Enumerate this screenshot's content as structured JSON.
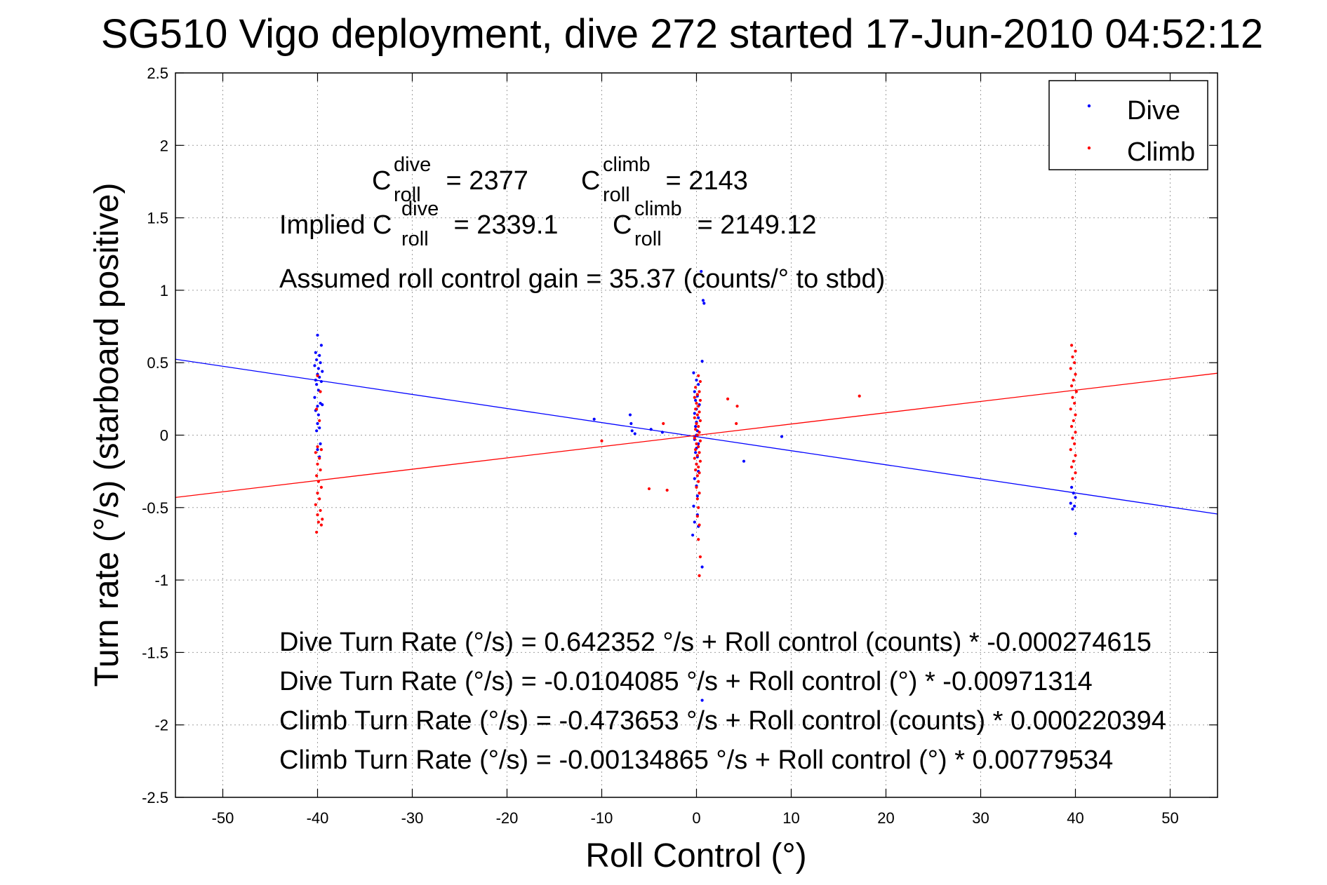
{
  "chart_data": {
    "type": "scatter",
    "title": "SG510 Vigo deployment, dive 272 started 17-Jun-2010 04:52:12",
    "xlabel": "Roll Control (°)",
    "ylabel": "Turn rate (°/s) (starboard positive)",
    "xlim": [
      -55,
      55
    ],
    "ylim": [
      -2.5,
      2.5
    ],
    "xticks": [
      -50,
      -40,
      -30,
      -20,
      -10,
      0,
      10,
      20,
      30,
      40,
      50
    ],
    "yticks": [
      2.5,
      2,
      1.5,
      1,
      0.5,
      0,
      -0.5,
      -1,
      -1.5,
      -2,
      -2.5
    ],
    "xtick_labels": [
      "-50",
      "-40",
      "-30",
      "-20",
      "-10",
      "0",
      "10",
      "20",
      "30",
      "40",
      "50"
    ],
    "ytick_labels": [
      "2.5",
      "2",
      "1.5",
      "1",
      "0.5",
      "0",
      "-0.5",
      "-1",
      "-1.5",
      "-2",
      "-2.5"
    ],
    "grid": true,
    "legend_position": "top-right",
    "series": [
      {
        "name": "Dive",
        "color": "#0000ff",
        "marker": "dot",
        "points": [
          [
            -40,
            0.69
          ],
          [
            -39.6,
            0.62
          ],
          [
            -40.2,
            0.57
          ],
          [
            -39.8,
            0.55
          ],
          [
            -40.1,
            0.52
          ],
          [
            -39.7,
            0.5
          ],
          [
            -40.3,
            0.48
          ],
          [
            -39.9,
            0.46
          ],
          [
            -39.5,
            0.44
          ],
          [
            -40,
            0.42
          ],
          [
            -39.8,
            0.4
          ],
          [
            -40.2,
            0.38
          ],
          [
            -39.6,
            0.37
          ],
          [
            -40.1,
            0.35
          ],
          [
            -39.9,
            0.31
          ],
          [
            -40.3,
            0.26
          ],
          [
            -39.7,
            0.22
          ],
          [
            -40,
            0.2
          ],
          [
            -39.5,
            0.21
          ],
          [
            -40.2,
            0.17
          ],
          [
            -39.9,
            0.14
          ],
          [
            -40,
            0.08
          ],
          [
            -39.8,
            0.05
          ],
          [
            -40.1,
            0.03
          ],
          [
            -39.7,
            -0.06
          ],
          [
            -40,
            -0.1
          ],
          [
            -39.8,
            -0.15
          ],
          [
            -10.8,
            0.11
          ],
          [
            -7,
            0.14
          ],
          [
            -6.9,
            0.08
          ],
          [
            -6.8,
            0.03
          ],
          [
            -6.5,
            0.01
          ],
          [
            -4.8,
            0.04
          ],
          [
            -3.6,
            0.02
          ],
          [
            -0.3,
            0.43
          ],
          [
            0,
            0.38
          ],
          [
            0.2,
            0.35
          ],
          [
            -0.2,
            0.3
          ],
          [
            0.1,
            0.27
          ],
          [
            -0.1,
            0.24
          ],
          [
            0.3,
            0.21
          ],
          [
            0,
            0.18
          ],
          [
            -0.2,
            0.15
          ],
          [
            0.2,
            0.12
          ],
          [
            0,
            0.09
          ],
          [
            -0.1,
            0.06
          ],
          [
            0.1,
            0.03
          ],
          [
            0,
            0.0
          ],
          [
            -0.2,
            -0.03
          ],
          [
            0.2,
            -0.06
          ],
          [
            0,
            -0.09
          ],
          [
            -0.1,
            -0.12
          ],
          [
            0.1,
            -0.15
          ],
          [
            0,
            -0.2
          ],
          [
            0.2,
            -0.25
          ],
          [
            -0.2,
            -0.3
          ],
          [
            0,
            -0.35
          ],
          [
            0.1,
            -0.42
          ],
          [
            -0.3,
            -0.49
          ],
          [
            0.1,
            -0.55
          ],
          [
            -0.2,
            -0.6
          ],
          [
            0.2,
            -0.63
          ],
          [
            -0.4,
            -0.69
          ],
          [
            0.5,
            1.13
          ],
          [
            0.7,
            0.93
          ],
          [
            0.8,
            0.91
          ],
          [
            0.6,
            0.51
          ],
          [
            0.6,
            -0.91
          ],
          [
            0.6,
            -1.83
          ],
          [
            5,
            -0.18
          ],
          [
            9,
            -0.01
          ],
          [
            39.6,
            -0.36
          ],
          [
            39.8,
            -0.4
          ],
          [
            40,
            -0.43
          ],
          [
            39.5,
            -0.47
          ],
          [
            39.9,
            -0.49
          ],
          [
            39.7,
            -0.51
          ],
          [
            40,
            -0.68
          ]
        ]
      },
      {
        "name": "Climb",
        "color": "#ff0000",
        "marker": "dot",
        "points": [
          [
            -40,
            0.41
          ],
          [
            -39.7,
            0.3
          ],
          [
            -40.1,
            0.18
          ],
          [
            -39.8,
            0.1
          ],
          [
            -40,
            -0.08
          ],
          [
            -39.6,
            -0.1
          ],
          [
            -40.2,
            -0.12
          ],
          [
            -39.8,
            -0.16
          ],
          [
            -40,
            -0.2
          ],
          [
            -39.7,
            -0.24
          ],
          [
            -40.1,
            -0.28
          ],
          [
            -39.9,
            -0.32
          ],
          [
            -39.6,
            -0.36
          ],
          [
            -40,
            -0.4
          ],
          [
            -39.8,
            -0.44
          ],
          [
            -40.2,
            -0.48
          ],
          [
            -39.7,
            -0.52
          ],
          [
            -40,
            -0.55
          ],
          [
            -39.5,
            -0.58
          ],
          [
            -39.9,
            -0.6
          ],
          [
            -39.6,
            -0.62
          ],
          [
            -40.1,
            -0.67
          ],
          [
            -10,
            -0.04
          ],
          [
            -5,
            -0.37
          ],
          [
            -3.5,
            0.08
          ],
          [
            -3.1,
            -0.38
          ],
          [
            0.2,
            0.41
          ],
          [
            0.4,
            0.37
          ],
          [
            -0.1,
            0.33
          ],
          [
            0.3,
            0.3
          ],
          [
            0.1,
            0.28
          ],
          [
            -0.2,
            0.26
          ],
          [
            0.4,
            0.24
          ],
          [
            0,
            0.22
          ],
          [
            0.2,
            0.2
          ],
          [
            -0.1,
            0.18
          ],
          [
            0.3,
            0.16
          ],
          [
            0.1,
            0.14
          ],
          [
            -0.2,
            0.12
          ],
          [
            0.4,
            0.1
          ],
          [
            0,
            0.08
          ],
          [
            0.2,
            0.06
          ],
          [
            -0.1,
            0.04
          ],
          [
            0.3,
            0.02
          ],
          [
            0.1,
            0.0
          ],
          [
            -0.2,
            -0.02
          ],
          [
            0.4,
            -0.04
          ],
          [
            0,
            -0.06
          ],
          [
            0.2,
            -0.08
          ],
          [
            -0.1,
            -0.1
          ],
          [
            0.3,
            -0.12
          ],
          [
            0.1,
            -0.14
          ],
          [
            -0.2,
            -0.16
          ],
          [
            0.4,
            -0.18
          ],
          [
            0,
            -0.2
          ],
          [
            0.2,
            -0.22
          ],
          [
            -0.1,
            -0.24
          ],
          [
            0.3,
            -0.26
          ],
          [
            0.1,
            -0.28
          ],
          [
            0.2,
            -0.32
          ],
          [
            0,
            -0.36
          ],
          [
            0.3,
            -0.4
          ],
          [
            0.1,
            -0.44
          ],
          [
            0.2,
            -0.5
          ],
          [
            0.1,
            -0.56
          ],
          [
            0.3,
            -0.62
          ],
          [
            0.2,
            -0.72
          ],
          [
            0.4,
            -0.84
          ],
          [
            0.3,
            -0.97
          ],
          [
            3.3,
            0.25
          ],
          [
            4.3,
            0.2
          ],
          [
            4.2,
            0.08
          ],
          [
            17.2,
            0.27
          ],
          [
            39.6,
            0.62
          ],
          [
            40,
            0.58
          ],
          [
            39.7,
            0.54
          ],
          [
            39.9,
            0.5
          ],
          [
            39.5,
            0.46
          ],
          [
            40,
            0.42
          ],
          [
            39.8,
            0.38
          ],
          [
            39.6,
            0.34
          ],
          [
            40.1,
            0.3
          ],
          [
            39.7,
            0.26
          ],
          [
            39.9,
            0.22
          ],
          [
            39.5,
            0.18
          ],
          [
            40,
            0.14
          ],
          [
            39.8,
            0.1
          ],
          [
            39.6,
            0.06
          ],
          [
            40,
            0.02
          ],
          [
            39.7,
            -0.02
          ],
          [
            39.9,
            -0.06
          ],
          [
            39.5,
            -0.1
          ],
          [
            40,
            -0.14
          ],
          [
            39.8,
            -0.18
          ],
          [
            39.6,
            -0.22
          ],
          [
            40,
            -0.26
          ],
          [
            39.7,
            -0.3
          ]
        ]
      }
    ],
    "fit_lines": [
      {
        "series": "Dive",
        "color": "#0000ff",
        "intercept": -0.0104085,
        "slope": -0.00971314
      },
      {
        "series": "Climb",
        "color": "#ff0000",
        "intercept": -0.00134865,
        "slope": 0.00779534
      }
    ],
    "annotations": {
      "c_roll_dive": {
        "base": "C",
        "sup": "dive",
        "sub": "roll",
        "value": " = 2377"
      },
      "c_roll_climb": {
        "base": "C",
        "sup": "climb",
        "sub": "roll",
        "value": " = 2143"
      },
      "implied_prefix": "Implied C",
      "implied_dive": {
        "sup": "dive",
        "sub": "roll",
        "value": " = 2339.1"
      },
      "implied_climb": {
        "base": "C",
        "sup": "climb",
        "sub": "roll",
        "value": " = 2149.12"
      },
      "gain": "Assumed roll control gain = 35.37 (counts/° to stbd)",
      "equations": [
        "Dive Turn Rate (°/s) = 0.642352 °/s + Roll control (counts) * -0.000274615",
        "Dive Turn Rate (°/s) = -0.0104085 °/s + Roll control (°) * -0.00971314",
        "Climb Turn Rate (°/s) = -0.473653 °/s + Roll control (counts) * 0.000220394",
        "Climb Turn Rate (°/s) = -0.00134865 °/s + Roll control (°) * 0.00779534"
      ]
    }
  }
}
